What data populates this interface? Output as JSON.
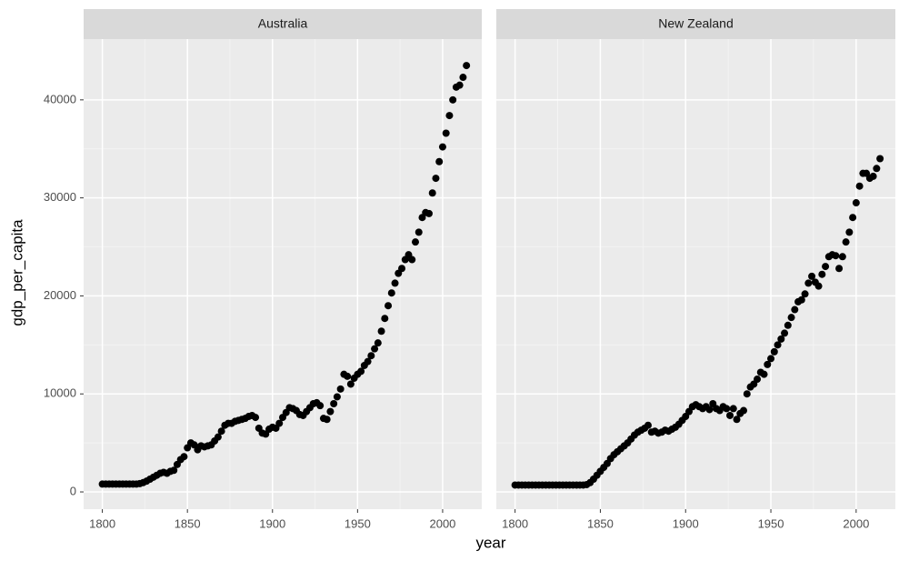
{
  "axes": {
    "xlabel": "year",
    "ylabel": "gdp_per_capita"
  },
  "chart_data": [
    {
      "type": "scatter",
      "title": "Australia",
      "color": "#000000",
      "x": [
        1800,
        1802,
        1804,
        1806,
        1808,
        1810,
        1812,
        1814,
        1816,
        1818,
        1820,
        1822,
        1824,
        1826,
        1828,
        1830,
        1832,
        1834,
        1836,
        1838,
        1840,
        1842,
        1844,
        1846,
        1848,
        1850,
        1852,
        1854,
        1856,
        1858,
        1860,
        1862,
        1864,
        1866,
        1868,
        1870,
        1872,
        1874,
        1876,
        1878,
        1880,
        1882,
        1884,
        1886,
        1888,
        1890,
        1892,
        1894,
        1896,
        1898,
        1900,
        1902,
        1904,
        1906,
        1908,
        1910,
        1912,
        1914,
        1916,
        1918,
        1920,
        1922,
        1924,
        1926,
        1928,
        1930,
        1932,
        1934,
        1936,
        1938,
        1940,
        1942,
        1944,
        1946,
        1948,
        1950,
        1952,
        1954,
        1956,
        1958,
        1960,
        1962,
        1964,
        1966,
        1968,
        1970,
        1972,
        1974,
        1976,
        1978,
        1980,
        1982,
        1984,
        1986,
        1988,
        1990,
        1992,
        1994,
        1996,
        1998,
        2000,
        2002,
        2004,
        2006,
        2008,
        2010,
        2012,
        2014
      ],
      "values": [
        800,
        800,
        800,
        800,
        800,
        800,
        800,
        800,
        800,
        800,
        800,
        850,
        950,
        1100,
        1300,
        1500,
        1700,
        1900,
        2000,
        1900,
        2100,
        2200,
        2800,
        3300,
        3600,
        4500,
        5000,
        4800,
        4300,
        4700,
        4600,
        4700,
        4800,
        5200,
        5600,
        6200,
        6800,
        7000,
        7000,
        7200,
        7300,
        7400,
        7500,
        7700,
        7800,
        7600,
        6500,
        6000,
        5900,
        6400,
        6600,
        6500,
        7000,
        7600,
        8100,
        8600,
        8500,
        8300,
        7900,
        7800,
        8200,
        8600,
        9000,
        9100,
        8800,
        7500,
        7400,
        8200,
        9000,
        9700,
        10500,
        12000,
        11800,
        11000,
        11600,
        12000,
        12300,
        12900,
        13300,
        13900,
        14600,
        15200,
        16400,
        17700,
        19000,
        20300,
        21300,
        22300,
        22800,
        23700,
        24200,
        23700,
        25500,
        26500,
        28000,
        28500,
        28400,
        30500,
        32000,
        33700,
        35200,
        36600,
        38400,
        40000,
        41300,
        41500,
        42300,
        43500
      ],
      "xlim": [
        1789,
        2023
      ],
      "ylim": [
        -1760,
        46200
      ],
      "xticks": [
        1800,
        1850,
        1900,
        1950,
        2000
      ],
      "yticks": [
        0,
        10000,
        20000,
        30000,
        40000
      ],
      "grid": true
    },
    {
      "type": "scatter",
      "title": "New Zealand",
      "color": "#000000",
      "x": [
        1800,
        1802,
        1804,
        1806,
        1808,
        1810,
        1812,
        1814,
        1816,
        1818,
        1820,
        1822,
        1824,
        1826,
        1828,
        1830,
        1832,
        1834,
        1836,
        1838,
        1840,
        1842,
        1844,
        1846,
        1848,
        1850,
        1852,
        1854,
        1856,
        1858,
        1860,
        1862,
        1864,
        1866,
        1868,
        1870,
        1872,
        1874,
        1876,
        1878,
        1880,
        1882,
        1884,
        1886,
        1888,
        1890,
        1892,
        1894,
        1896,
        1898,
        1900,
        1902,
        1904,
        1906,
        1908,
        1910,
        1912,
        1914,
        1916,
        1918,
        1920,
        1922,
        1924,
        1926,
        1928,
        1930,
        1932,
        1934,
        1936,
        1938,
        1940,
        1942,
        1944,
        1946,
        1948,
        1950,
        1952,
        1954,
        1956,
        1958,
        1960,
        1962,
        1964,
        1966,
        1968,
        1970,
        1972,
        1974,
        1976,
        1978,
        1980,
        1982,
        1984,
        1986,
        1988,
        1990,
        1992,
        1994,
        1996,
        1998,
        2000,
        2002,
        2004,
        2006,
        2008,
        2010,
        2012,
        2014
      ],
      "values": [
        700,
        700,
        700,
        700,
        700,
        700,
        700,
        700,
        700,
        700,
        700,
        700,
        700,
        700,
        700,
        700,
        700,
        700,
        700,
        700,
        700,
        750,
        950,
        1300,
        1700,
        2100,
        2500,
        2900,
        3400,
        3800,
        4100,
        4400,
        4700,
        5000,
        5400,
        5800,
        6100,
        6300,
        6500,
        6800,
        6100,
        6200,
        6000,
        6100,
        6300,
        6200,
        6400,
        6600,
        6900,
        7300,
        7700,
        8200,
        8700,
        8900,
        8700,
        8500,
        8700,
        8400,
        9000,
        8500,
        8300,
        8700,
        8500,
        7800,
        8500,
        7400,
        8000,
        8300,
        10000,
        10700,
        11000,
        11500,
        12200,
        12000,
        13000,
        13600,
        14300,
        15000,
        15600,
        16200,
        17000,
        17800,
        18600,
        19400,
        19600,
        20200,
        21300,
        22000,
        21400,
        21000,
        22200,
        23000,
        24000,
        24200,
        24100,
        22800,
        24000,
        25500,
        26500,
        28000,
        29500,
        31200,
        32500,
        32500,
        32000,
        32200,
        33000,
        34000
      ],
      "xlim": [
        1789,
        2023
      ],
      "ylim": [
        -1760,
        46200
      ],
      "xticks": [
        1800,
        1850,
        1900,
        1950,
        2000
      ],
      "yticks": [
        0,
        10000,
        20000,
        30000,
        40000
      ],
      "grid": true
    }
  ]
}
